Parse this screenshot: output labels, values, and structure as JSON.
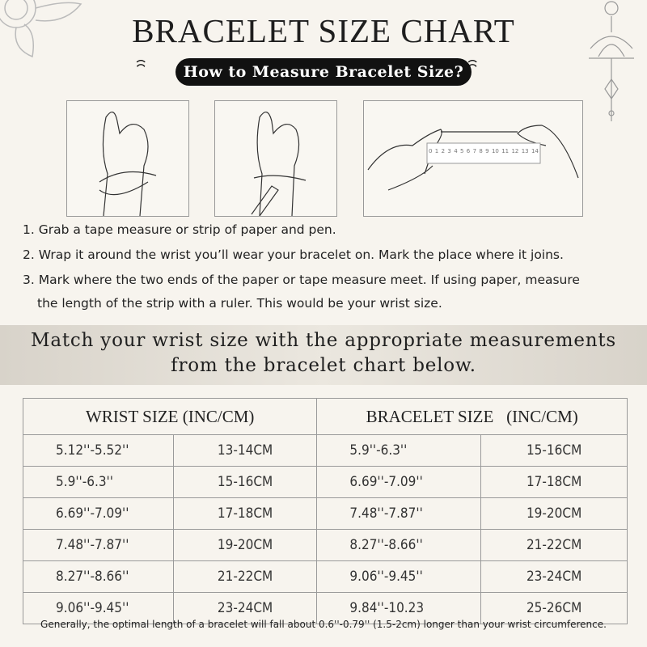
{
  "title": "BRACELET SIZE CHART",
  "subtitle": "How to Measure Bracelet Size?",
  "ruler_numbers": [
    "0",
    "1",
    "2",
    "3",
    "4",
    "5",
    "6",
    "7",
    "8",
    "9",
    "10",
    "11",
    "12",
    "13",
    "14"
  ],
  "steps": [
    "1. Grab a tape measure or strip of paper and pen.",
    "2. Wrap it around the wrist you’ll wear your bracelet on. Mark the place where it joins.",
    "3. Mark where the two ends of the paper or tape measure meet. If using paper, measure",
    "the length of the strip with a ruler. This would be your wrist size."
  ],
  "match_text": [
    "Match your wrist size with the appropriate measurements",
    "from the bracelet chart below."
  ],
  "table": {
    "headers": [
      "WRIST SIZE (INC/CM)",
      "BRACELET SIZE   (INC/CM)"
    ],
    "rows": [
      [
        "5.12''-5.52''",
        "13-14CM",
        "5.9''-6.3''",
        "15-16CM"
      ],
      [
        "5.9''-6.3''",
        "15-16CM",
        "6.69''-7.09''",
        "17-18CM"
      ],
      [
        "6.69''-7.09''",
        "17-18CM",
        "7.48''-7.87''",
        "19-20CM"
      ],
      [
        "7.48''-7.87''",
        "19-20CM",
        "8.27''-8.66''",
        "21-22CM"
      ],
      [
        "8.27''-8.66''",
        "21-22CM",
        "9.06''-9.45''",
        "23-24CM"
      ],
      [
        "9.06''-9.45''",
        "23-24CM",
        "9.84''-10.23",
        "25-26CM"
      ]
    ]
  },
  "note": "Generally, the optimal length of a bracelet will fall about 0.6''-0.79'' (1.5-2cm) longer than your wrist circumference."
}
